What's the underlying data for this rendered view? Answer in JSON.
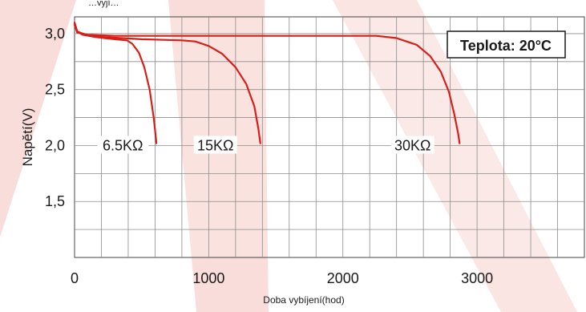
{
  "chart_data": {
    "type": "line",
    "title": "",
    "xlabel": "Doba vybíjení(hod)",
    "ylabel": "Napětí(V)",
    "top_caption": "…vyjí…",
    "annotation": "Teplota: 20°C",
    "xlim": [
      0,
      3800
    ],
    "ylim": [
      1.0,
      3.15
    ],
    "x_ticks": [
      0,
      1000,
      2000,
      3000
    ],
    "x_tick_labels": [
      "0",
      "1000",
      "2000",
      "3000"
    ],
    "y_ticks": [
      1.5,
      2.0,
      2.5,
      3.0
    ],
    "y_tick_labels": [
      "1,5",
      "2,0",
      "2,5",
      "3,0"
    ],
    "grid": true,
    "line_color": "#d91e18",
    "background_colors": {
      "plot": "#ffffff",
      "watermark": "#f6cfcb"
    },
    "series": [
      {
        "name": "6.5KΩ",
        "x": [
          0,
          20,
          60,
          150,
          300,
          390,
          430,
          480,
          520,
          560,
          590,
          605,
          610
        ],
        "y": [
          3.1,
          3.02,
          2.99,
          2.97,
          2.95,
          2.94,
          2.91,
          2.83,
          2.7,
          2.5,
          2.25,
          2.08,
          2.02
        ]
      },
      {
        "name": "15KΩ",
        "x": [
          0,
          20,
          80,
          200,
          500,
          800,
          900,
          1000,
          1100,
          1200,
          1280,
          1340,
          1370,
          1385
        ],
        "y": [
          3.09,
          3.02,
          2.99,
          2.97,
          2.95,
          2.94,
          2.93,
          2.89,
          2.82,
          2.7,
          2.55,
          2.35,
          2.15,
          2.02
        ]
      },
      {
        "name": "30KΩ",
        "x": [
          0,
          20,
          100,
          300,
          600,
          1000,
          1500,
          2000,
          2250,
          2400,
          2550,
          2650,
          2730,
          2790,
          2830,
          2860,
          2870
        ],
        "y": [
          3.08,
          3.01,
          2.99,
          2.98,
          2.98,
          2.98,
          2.98,
          2.98,
          2.98,
          2.96,
          2.9,
          2.8,
          2.66,
          2.48,
          2.28,
          2.1,
          2.02
        ]
      }
    ],
    "series_label_positions": [
      {
        "name": "6.5KΩ",
        "x": 360,
        "y": 2.0
      },
      {
        "name": "15KΩ",
        "x": 1050,
        "y": 2.0
      },
      {
        "name": "30KΩ",
        "x": 2520,
        "y": 2.0
      }
    ]
  }
}
